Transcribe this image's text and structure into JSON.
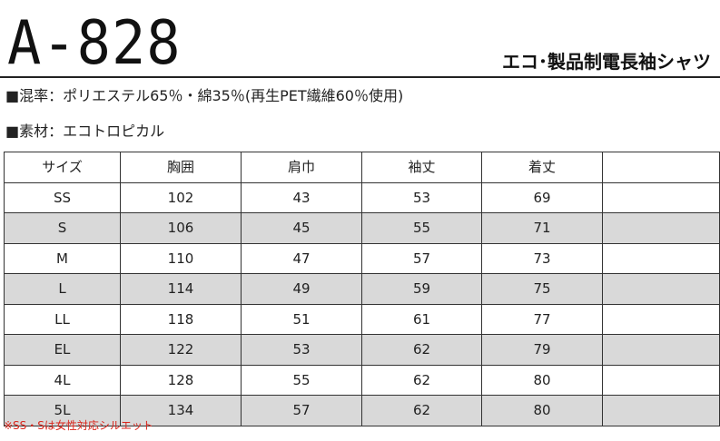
{
  "header": {
    "model": "A-828",
    "product_name": "エコ･製品制電長袖シャツ"
  },
  "specs": {
    "blend": "■混率：ポリエステル65％・綿35％(再生PET繊維60％使用)",
    "material": "■素材：エコトロピカル"
  },
  "size_table": {
    "headers": [
      "サイズ",
      "胸囲",
      "肩巾",
      "袖丈",
      "着丈",
      ""
    ],
    "rows": [
      [
        "SS",
        "102",
        "43",
        "53",
        "69",
        ""
      ],
      [
        "S",
        "106",
        "45",
        "55",
        "71",
        ""
      ],
      [
        "M",
        "110",
        "47",
        "57",
        "73",
        ""
      ],
      [
        "L",
        "114",
        "49",
        "59",
        "75",
        ""
      ],
      [
        "LL",
        "118",
        "51",
        "61",
        "77",
        ""
      ],
      [
        "EL",
        "122",
        "53",
        "62",
        "79",
        ""
      ],
      [
        "4L",
        "128",
        "55",
        "62",
        "80",
        ""
      ],
      [
        "5L",
        "134",
        "57",
        "62",
        "80",
        ""
      ]
    ]
  },
  "note": "※SS・Sは女性対応シルエット",
  "colors": {
    "shaded_row": "#d9d9d9",
    "note_text": "#d9261c",
    "border": "#333333"
  }
}
